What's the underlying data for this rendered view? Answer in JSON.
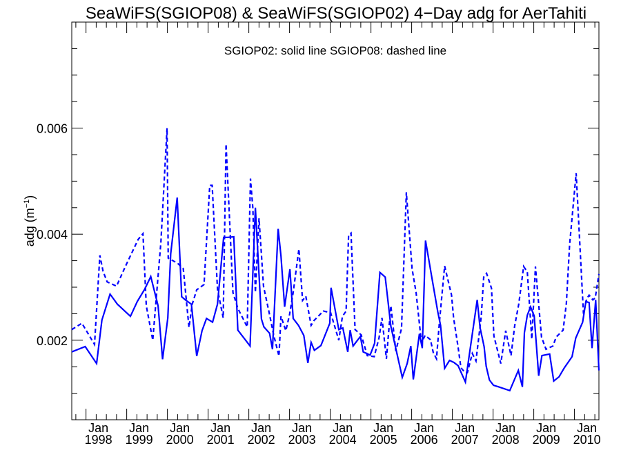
{
  "chart_data": {
    "type": "line",
    "title": "SeaWiFS(SGIOP08) & SeaWiFS(SGIOP02) 4−Day adg for AerTahiti",
    "annotation": "SGIOP02: solid line   SGIOP08: dashed line",
    "ylabel": "adg (m",
    "ylabel_sup": "−1",
    "ylabel_close": ")",
    "xlabel": "",
    "ylim": [
      0.0005,
      0.008
    ],
    "xlim": [
      1997.65,
      2010.6
    ],
    "yticks": [
      {
        "value": 0.002,
        "label": "0.002"
      },
      {
        "value": 0.004,
        "label": "0.004"
      },
      {
        "value": 0.006,
        "label": "0.006"
      }
    ],
    "xticks": [
      {
        "value": 1998,
        "month": "Jan",
        "year": "1998"
      },
      {
        "value": 1999,
        "month": "Jan",
        "year": "1999"
      },
      {
        "value": 2000,
        "month": "Jan",
        "year": "2000"
      },
      {
        "value": 2001,
        "month": "Jan",
        "year": "2001"
      },
      {
        "value": 2002,
        "month": "Jan",
        "year": "2002"
      },
      {
        "value": 2003,
        "month": "Jan",
        "year": "2003"
      },
      {
        "value": 2004,
        "month": "Jan",
        "year": "2004"
      },
      {
        "value": 2005,
        "month": "Jan",
        "year": "2005"
      },
      {
        "value": 2006,
        "month": "Jan",
        "year": "2006"
      },
      {
        "value": 2007,
        "month": "Jan",
        "year": "2007"
      },
      {
        "value": 2008,
        "month": "Jan",
        "year": "2008"
      },
      {
        "value": 2009,
        "month": "Jan",
        "year": "2009"
      },
      {
        "value": 2010,
        "month": "Jan",
        "year": "2010"
      }
    ],
    "grid": false,
    "line_color": "#0000ff",
    "series": [
      {
        "style": "solid",
        "x": [
          1997.65,
          1997.98,
          1998.26,
          1998.39,
          1998.59,
          1998.77,
          1999.09,
          1999.26,
          1999.44,
          1999.59,
          1999.77,
          1999.88,
          2000.01,
          2000.08,
          2000.24,
          2000.35,
          2000.44,
          2000.59,
          2000.72,
          2000.85,
          2000.96,
          2001.11,
          2001.23,
          2001.38,
          2001.48,
          2001.63,
          2001.73,
          2002.03,
          2002.16,
          2002.31,
          2002.37,
          2002.51,
          2002.58,
          2002.72,
          2002.79,
          2002.88,
          2003.01,
          2003.09,
          2003.22,
          2003.35,
          2003.45,
          2003.53,
          2003.61,
          2003.77,
          2003.99,
          2004.02,
          2004.21,
          2004.31,
          2004.43,
          2004.49,
          2004.56,
          2004.74,
          2004.81,
          2004.98,
          2005.09,
          2005.22,
          2005.35,
          2005.49,
          2005.77,
          2005.89,
          2005.98,
          2006.04,
          2006.19,
          2006.26,
          2006.34,
          2006.49,
          2006.64,
          2006.71,
          2006.81,
          2006.93,
          2007.04,
          2007.14,
          2007.32,
          2007.61,
          2007.68,
          2007.78,
          2007.83,
          2007.91,
          2008.01,
          2008.14,
          2008.41,
          2008.62,
          2008.72,
          2008.77,
          2008.84,
          2008.92,
          2009.01,
          2009.12,
          2009.2,
          2009.39,
          2009.49,
          2009.62,
          2009.75,
          2009.94,
          2010.03,
          2010.2,
          2010.28,
          2010.36,
          2010.43,
          2010.52,
          2010.6
        ],
        "y": [
          0.00178,
          0.00188,
          0.00156,
          0.00238,
          0.00287,
          0.00268,
          0.00245,
          0.00273,
          0.00296,
          0.0032,
          0.00265,
          0.00164,
          0.00242,
          0.00363,
          0.00469,
          0.00282,
          0.00276,
          0.00268,
          0.0017,
          0.00218,
          0.00241,
          0.00234,
          0.00268,
          0.00394,
          0.00394,
          0.00395,
          0.00219,
          0.00189,
          0.0045,
          0.0024,
          0.00225,
          0.00213,
          0.00183,
          0.0041,
          0.00359,
          0.00263,
          0.00334,
          0.00241,
          0.00228,
          0.00209,
          0.00157,
          0.00196,
          0.00181,
          0.0019,
          0.00232,
          0.00299,
          0.0022,
          0.00223,
          0.00178,
          0.00219,
          0.00189,
          0.00207,
          0.00178,
          0.00172,
          0.00194,
          0.00328,
          0.00319,
          0.00226,
          0.0013,
          0.00156,
          0.00189,
          0.00126,
          0.00212,
          0.00185,
          0.00388,
          0.00321,
          0.00254,
          0.00228,
          0.00147,
          0.00162,
          0.00158,
          0.00152,
          0.00121,
          0.00276,
          0.00224,
          0.00188,
          0.00151,
          0.00125,
          0.00115,
          0.00112,
          0.00105,
          0.00143,
          0.00112,
          0.00214,
          0.00247,
          0.00263,
          0.00246,
          0.00133,
          0.00171,
          0.00174,
          0.00123,
          0.00131,
          0.00148,
          0.00169,
          0.00204,
          0.00234,
          0.00273,
          0.00271,
          0.00185,
          0.00276,
          0.00143
        ],
        "note": "solid series"
      },
      {
        "style": "dashed",
        "x": [
          1997.65,
          1997.9,
          1998.21,
          1998.34,
          1998.42,
          1998.52,
          1998.75,
          1998.96,
          1999.28,
          1999.4,
          1999.48,
          1999.64,
          1999.84,
          1999.99,
          2000.02,
          2000.25,
          2000.39,
          2000.53,
          2000.61,
          2000.72,
          2000.9,
          2001.04,
          2001.1,
          2001.23,
          2001.37,
          2001.44,
          2001.61,
          2001.73,
          2001.96,
          2002.04,
          2002.1,
          2002.16,
          2002.25,
          2002.36,
          2002.51,
          2002.61,
          2002.74,
          2002.79,
          2002.91,
          2003.0,
          2003.09,
          2003.23,
          2003.32,
          2003.4,
          2003.53,
          2003.6,
          2003.83,
          2004.01,
          2004.21,
          2004.3,
          2004.39,
          2004.45,
          2004.51,
          2004.61,
          2004.76,
          2004.91,
          2005.08,
          2005.2,
          2005.27,
          2005.38,
          2005.49,
          2005.61,
          2005.75,
          2005.87,
          2006.01,
          2006.11,
          2006.24,
          2006.33,
          2006.46,
          2006.53,
          2006.61,
          2006.68,
          2006.81,
          2006.98,
          2007.03,
          2007.14,
          2007.21,
          2007.31,
          2007.37,
          2007.49,
          2007.58,
          2007.71,
          2007.77,
          2007.84,
          2007.96,
          2008.02,
          2008.19,
          2008.31,
          2008.44,
          2008.53,
          2008.63,
          2008.75,
          2008.84,
          2008.95,
          2009.04,
          2009.19,
          2009.3,
          2009.47,
          2009.55,
          2009.72,
          2009.8,
          2009.88,
          2010.04,
          2010.22,
          2010.3,
          2010.36,
          2010.45,
          2010.51,
          2010.6
        ],
        "y": [
          0.0022,
          0.00232,
          0.00192,
          0.0036,
          0.0033,
          0.0031,
          0.00302,
          0.00338,
          0.0039,
          0.00401,
          0.00265,
          0.002,
          0.00385,
          0.006,
          0.00355,
          0.00345,
          0.00335,
          0.00224,
          0.00268,
          0.00295,
          0.00305,
          0.00492,
          0.00492,
          0.00296,
          0.00242,
          0.0057,
          0.0029,
          0.0026,
          0.00225,
          0.00505,
          0.00448,
          0.0029,
          0.0043,
          0.00302,
          0.00248,
          0.0021,
          0.0017,
          0.00245,
          0.00218,
          0.00248,
          0.0029,
          0.00372,
          0.00275,
          0.00283,
          0.00228,
          0.00237,
          0.00255,
          0.00252,
          0.002,
          0.00245,
          0.00255,
          0.00398,
          0.00402,
          0.0022,
          0.0021,
          0.00171,
          0.00169,
          0.00205,
          0.00242,
          0.00165,
          0.00265,
          0.0018,
          0.00222,
          0.00479,
          0.00335,
          0.00289,
          0.00195,
          0.00209,
          0.00201,
          0.00177,
          0.00165,
          0.00232,
          0.0034,
          0.00285,
          0.00242,
          0.00187,
          0.00148,
          0.00139,
          0.00139,
          0.00175,
          0.00161,
          0.00245,
          0.00319,
          0.00326,
          0.00298,
          0.00208,
          0.00156,
          0.00218,
          0.00171,
          0.00227,
          0.00268,
          0.00339,
          0.00329,
          0.00202,
          0.00339,
          0.00206,
          0.00183,
          0.00189,
          0.00206,
          0.00219,
          0.00269,
          0.0038,
          0.00515,
          0.0025,
          0.00278,
          0.00285,
          0.00276,
          0.0028,
          0.00325
        ],
        "note": "dashed series"
      }
    ]
  }
}
